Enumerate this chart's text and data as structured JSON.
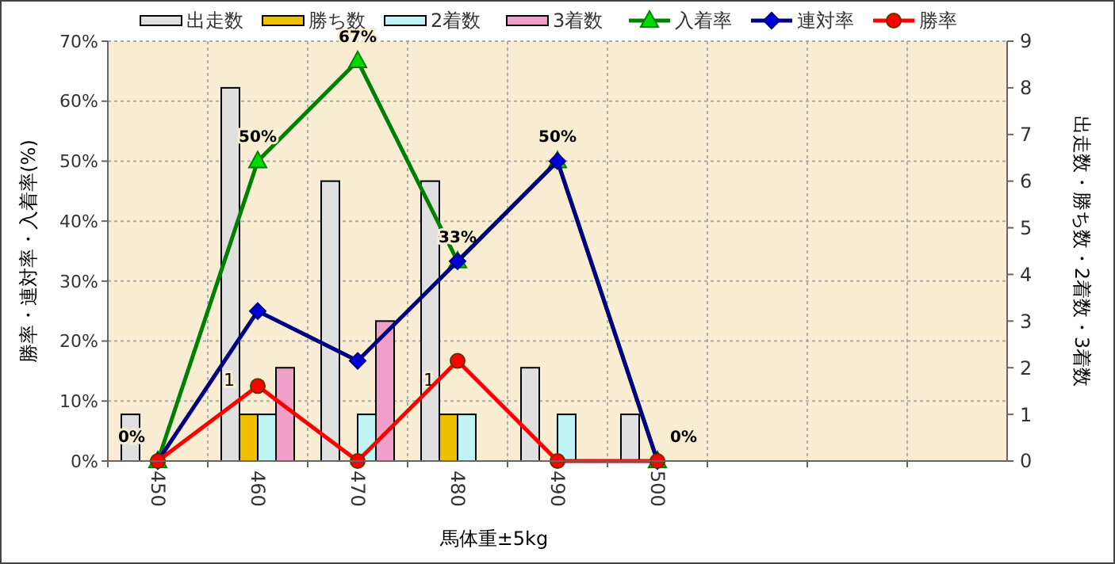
{
  "chart_data": {
    "type": "bar",
    "xlabel": "馬体重±5kg",
    "ylabel": "勝率・連対率・入着率(%)",
    "y2label": "出走数・勝ち数・2着数・3着数",
    "categories": [
      "450",
      "460",
      "470",
      "480",
      "490",
      "500",
      null,
      null,
      null
    ],
    "series": [
      {
        "name": "出走数",
        "axis": "y2",
        "color": "#e0e0e0",
        "values": [
          1,
          8,
          6,
          6,
          2,
          1,
          null,
          null,
          null
        ]
      },
      {
        "name": "勝ち数",
        "axis": "y2",
        "color": "#f0c000",
        "values": [
          null,
          1,
          null,
          1,
          null,
          null,
          null,
          null,
          null
        ],
        "value_labels": [
          null,
          "1",
          null,
          "1",
          null,
          null,
          null,
          null,
          null
        ]
      },
      {
        "name": "2着数",
        "axis": "y2",
        "color": "#c0f4f4",
        "values": [
          null,
          1,
          1,
          1,
          1,
          null,
          null,
          null,
          null
        ]
      },
      {
        "name": "3着数",
        "axis": "y2",
        "color": "#f0a0c8",
        "values": [
          null,
          2,
          3,
          null,
          null,
          null,
          null,
          null,
          null
        ]
      },
      {
        "name": "入着率",
        "type": "line",
        "axis": "y",
        "color": "#008000",
        "marker": "triangle",
        "values": [
          0,
          50,
          66.7,
          33.3,
          50,
          0,
          null,
          null,
          null
        ],
        "value_labels": [
          "0%",
          "50%",
          "67%",
          "33%",
          "50%",
          "0%",
          null,
          null,
          null
        ]
      },
      {
        "name": "連対率",
        "type": "line",
        "axis": "y",
        "color": "#000080",
        "marker": "diamond",
        "values": [
          0,
          25,
          16.7,
          33.3,
          50,
          0,
          null,
          null,
          null
        ]
      },
      {
        "name": "勝率",
        "type": "line",
        "axis": "y",
        "color": "#ff0000",
        "marker": "circle",
        "values": [
          0,
          12.5,
          0,
          16.7,
          0,
          0,
          null,
          null,
          null
        ]
      }
    ],
    "ylim": [
      0,
      70
    ],
    "yticks": [
      {
        "value": 0,
        "label": "0%"
      },
      {
        "value": 10,
        "label": "10%"
      },
      {
        "value": 20,
        "label": "20%"
      },
      {
        "value": 30,
        "label": "30%"
      },
      {
        "value": 40,
        "label": "40%"
      },
      {
        "value": 50,
        "label": "50%"
      },
      {
        "value": 60,
        "label": "60%"
      },
      {
        "value": 70,
        "label": "70%"
      }
    ],
    "y2lim": [
      0,
      9
    ],
    "y2ticks": [
      0,
      1,
      2,
      3,
      4,
      5,
      6,
      7,
      8,
      9
    ],
    "grid": true,
    "legend": "top"
  }
}
